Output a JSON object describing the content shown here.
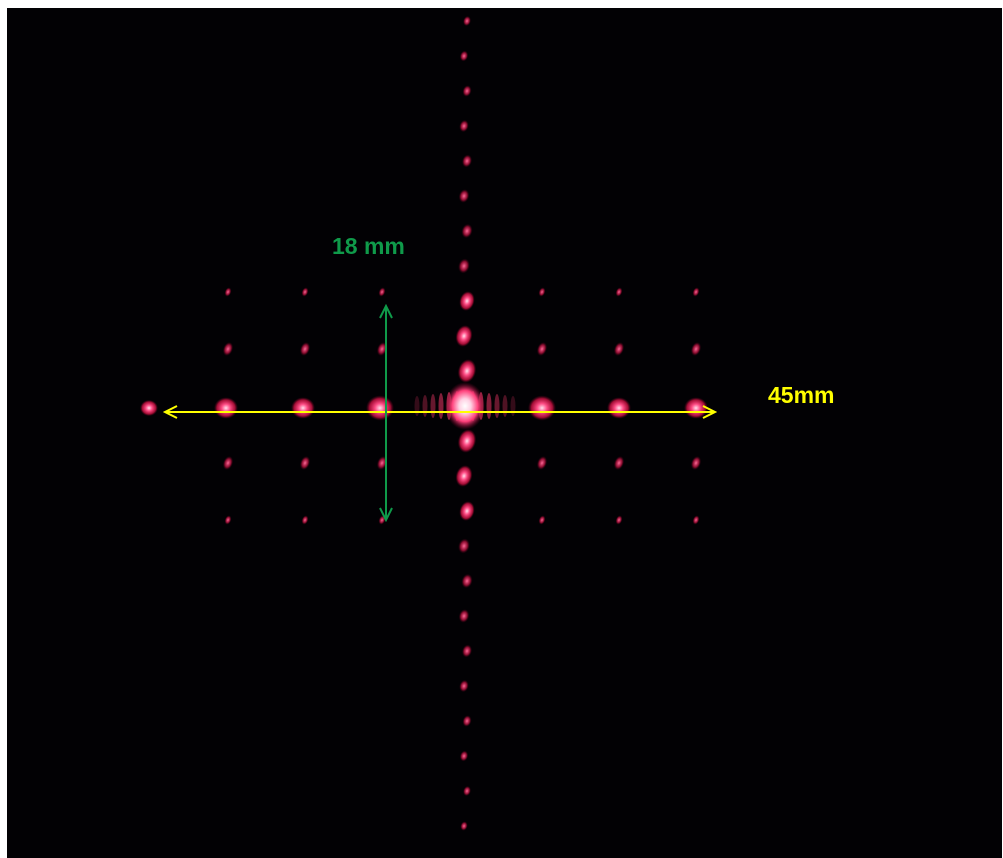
{
  "image": {
    "subject": "laser-diffraction-pattern",
    "background_color": "#020104",
    "spot_color": "#ff2d6e",
    "spot_core_color": "#ffd2e4"
  },
  "measurements": {
    "vertical": {
      "label": "18 mm",
      "color": "#0f9a4a"
    },
    "horizontal": {
      "label": "45mm",
      "color": "#ffff00"
    }
  }
}
